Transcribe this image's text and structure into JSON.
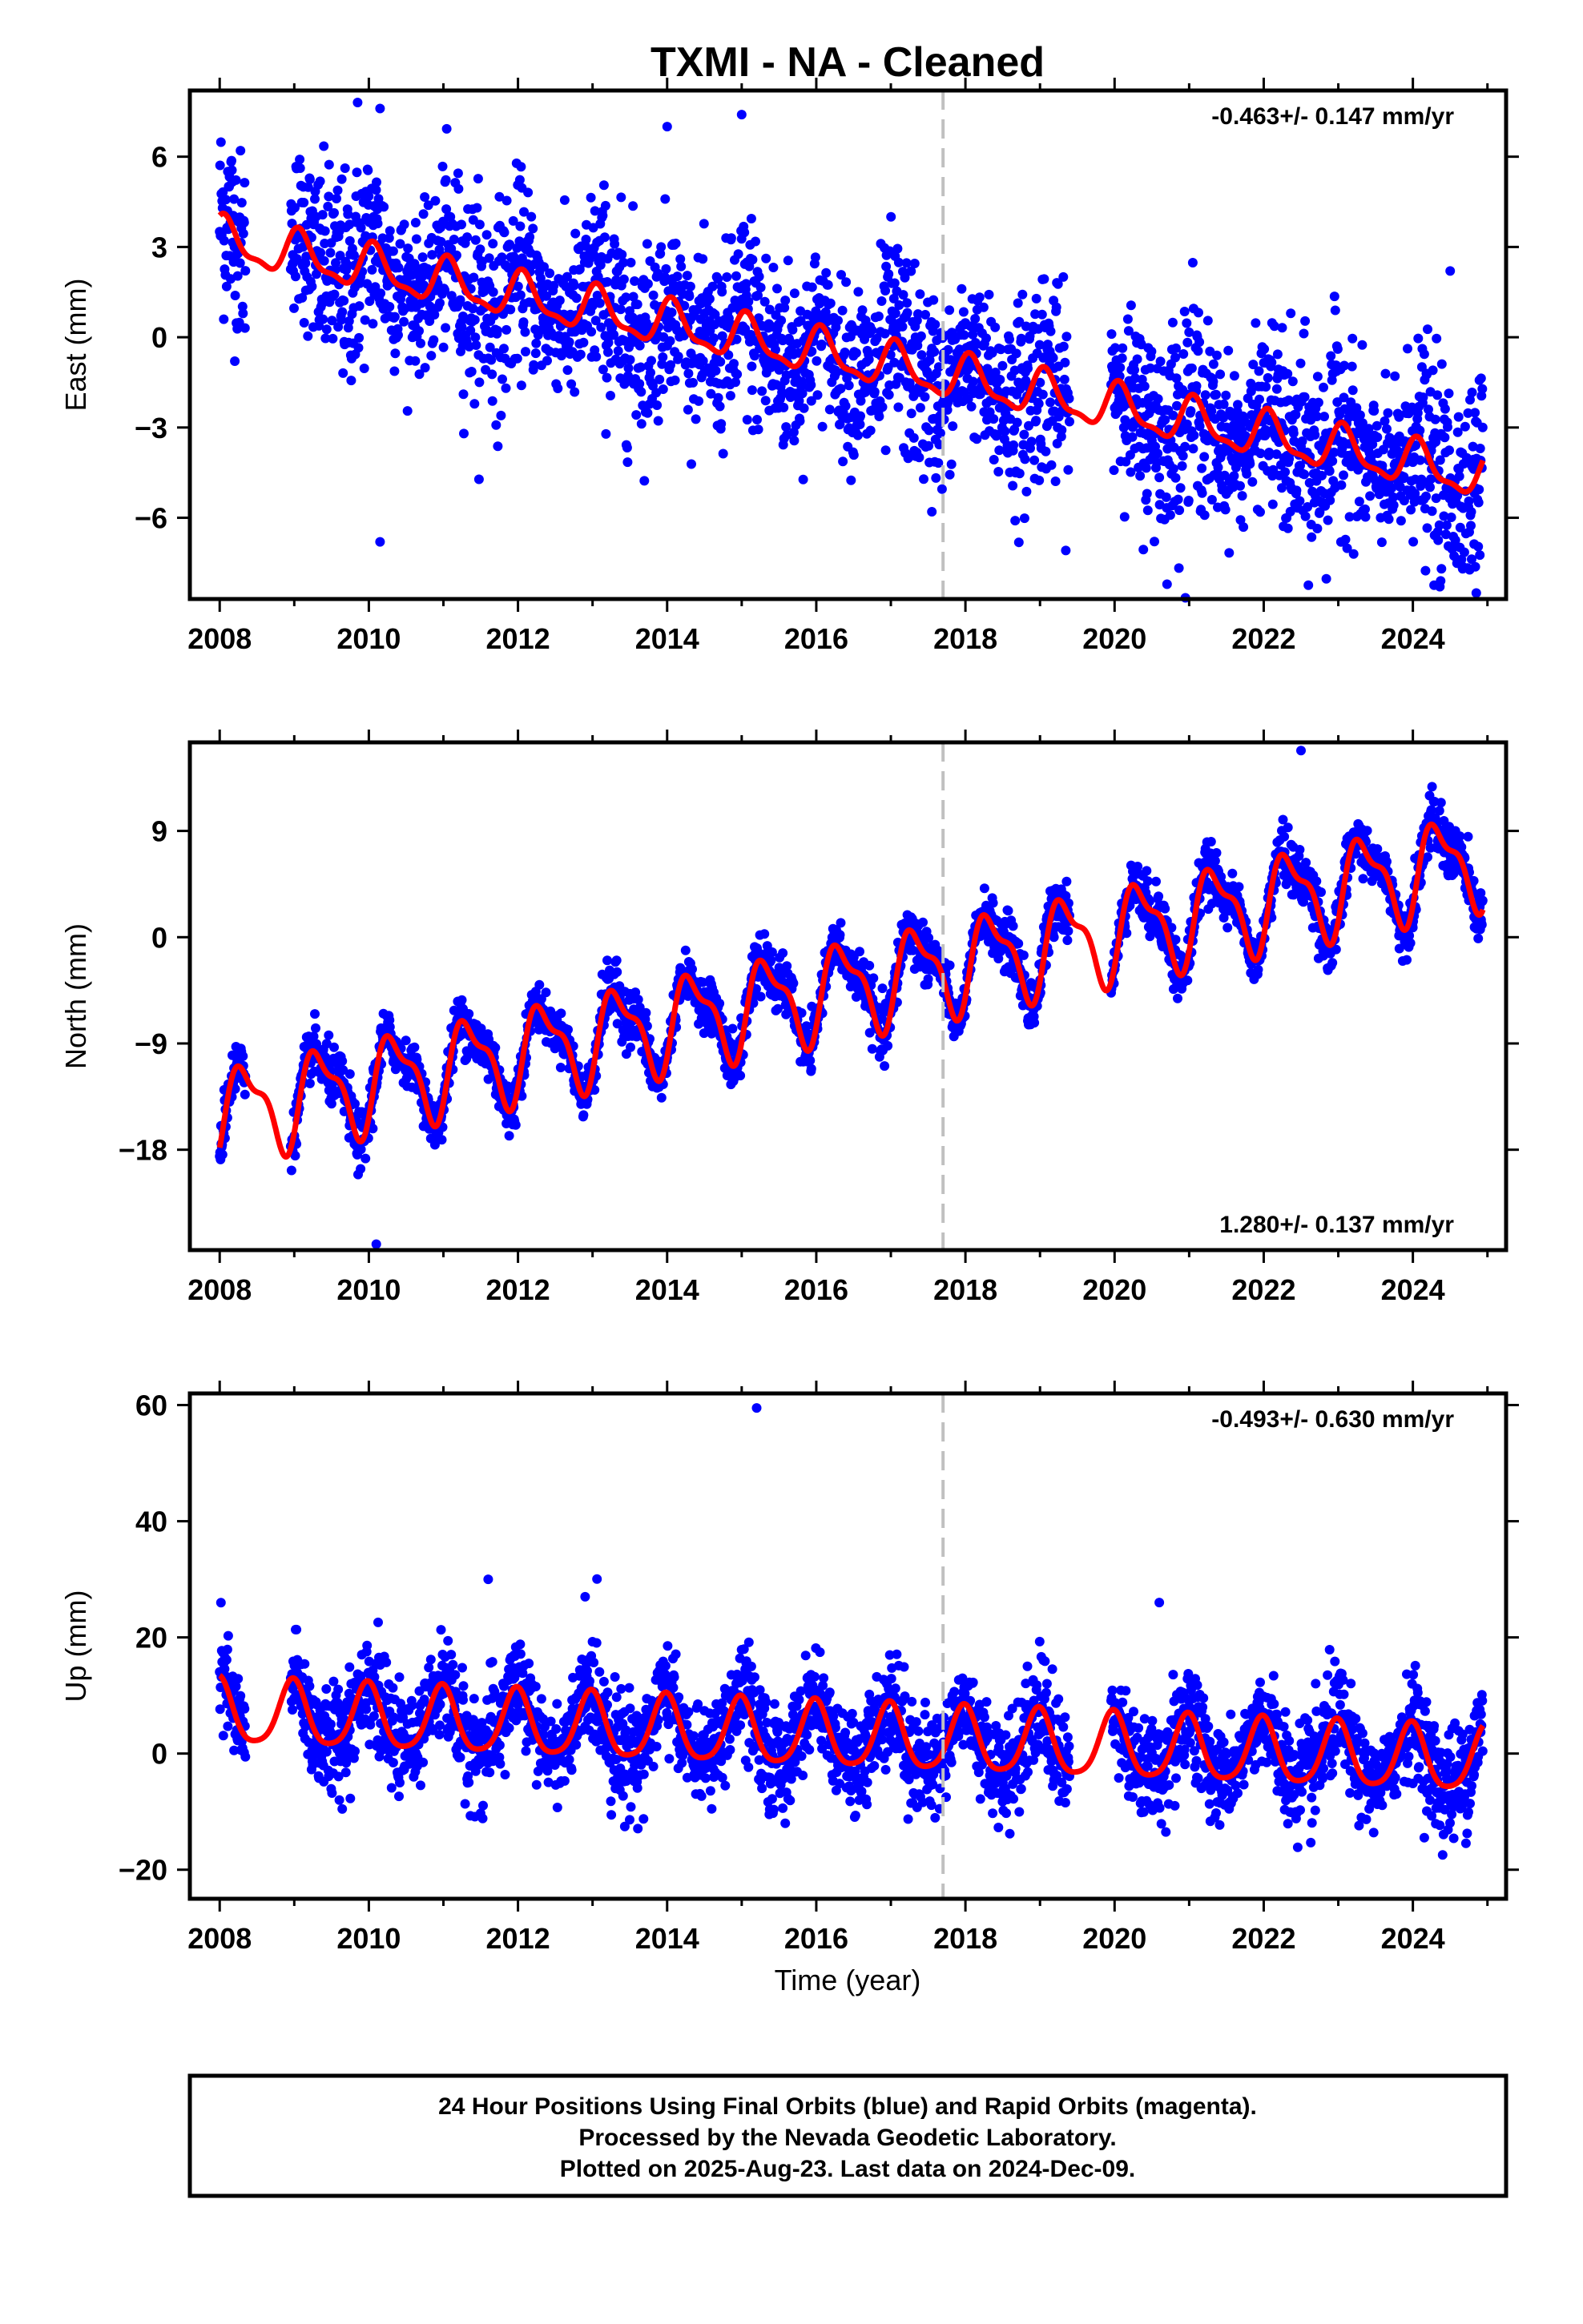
{
  "title": "TXMI  - NA - Cleaned",
  "xlabel": "Time (year)",
  "footer": [
    "24 Hour Positions Using Final Orbits (blue) and Rapid Orbits (magenta).",
    "Processed by the Nevada Geodetic Laboratory.",
    "Plotted on 2025-Aug-23. Last data on 2024-Dec-09."
  ],
  "colors": {
    "points": "#0000ff",
    "model": "#ff0000",
    "event_line": "#c0c0c0",
    "frame": "#000000"
  },
  "chart_data": [
    {
      "type": "scatter",
      "component": "east",
      "ylabel": "East (mm)",
      "rate_text": "-0.463+/- 0.147 mm/yr",
      "rate_position": "top-right",
      "xlim": [
        2007.6,
        2025.25
      ],
      "ylim": [
        -8.7,
        8.2
      ],
      "xticks": [
        2008,
        2010,
        2012,
        2014,
        2016,
        2018,
        2020,
        2022,
        2024
      ],
      "yticks": [
        -6,
        -3,
        0,
        3,
        6
      ],
      "ytick_labels": [
        "−6",
        "−3",
        "0",
        "3",
        "6"
      ],
      "event_line_year": 2017.7,
      "data_range": [
        2008.0,
        2024.94
      ],
      "model": {
        "offset_2008": 3.2,
        "rate_mm_per_yr": -0.463,
        "annual_amp": 0.7,
        "annual_phase": 1.1,
        "semiannual_amp": 0.25,
        "scatter_sd": 1.4
      },
      "outliers": [
        {
          "x": 2009.85,
          "y": 7.8
        },
        {
          "x": 2010.15,
          "y": 7.6
        },
        {
          "x": 2010.15,
          "y": -6.8
        },
        {
          "x": 2014.0,
          "y": 7.0
        },
        {
          "x": 2015.0,
          "y": 7.4
        },
        {
          "x": 2017.55,
          "y": -5.8
        },
        {
          "x": 2024.5,
          "y": 2.2
        },
        {
          "x": 2024.85,
          "y": -8.5
        }
      ]
    },
    {
      "type": "scatter",
      "component": "north",
      "ylabel": "North (mm)",
      "rate_text": "1.280+/- 0.137 mm/yr",
      "rate_position": "bottom-right",
      "xlim": [
        2007.6,
        2025.25
      ],
      "ylim": [
        -26.5,
        16.5
      ],
      "xticks": [
        2008,
        2010,
        2012,
        2014,
        2016,
        2018,
        2020,
        2022,
        2024
      ],
      "yticks": [
        -18,
        -9,
        0,
        9
      ],
      "ytick_labels": [
        "−18",
        "−9",
        "0",
        "9"
      ],
      "event_line_year": 2017.7,
      "data_range": [
        2008.0,
        2024.94
      ],
      "model": {
        "offset_2008": -15.0,
        "rate_mm_per_yr": 1.28,
        "annual_amp": 3.6,
        "annual_phase": -0.6,
        "semiannual_amp": 1.4,
        "scatter_sd": 1.0
      },
      "outliers": [
        {
          "x": 2010.1,
          "y": -26.0
        },
        {
          "x": 2022.5,
          "y": 15.8
        }
      ]
    },
    {
      "type": "scatter",
      "component": "up",
      "ylabel": "Up (mm)",
      "rate_text": "-0.493+/- 0.630 mm/yr",
      "rate_position": "top-right",
      "xlim": [
        2007.6,
        2025.25
      ],
      "ylim": [
        -25,
        62
      ],
      "xticks": [
        2008,
        2010,
        2012,
        2014,
        2016,
        2018,
        2020,
        2022,
        2024
      ],
      "yticks": [
        -20,
        0,
        20,
        40,
        60
      ],
      "ytick_labels": [
        "−20",
        "0",
        "20",
        "40",
        "60"
      ],
      "event_line_year": 2017.7,
      "data_range": [
        2008.0,
        2024.94
      ],
      "model": {
        "offset_2008": 7.0,
        "rate_mm_per_yr": -0.493,
        "annual_amp": 5.5,
        "annual_phase": 1.7,
        "semiannual_amp": 1.0,
        "scatter_sd": 4.0
      },
      "outliers": [
        {
          "x": 2015.2,
          "y": 59.5
        },
        {
          "x": 2020.6,
          "y": 26.0
        },
        {
          "x": 2011.6,
          "y": 30.0
        },
        {
          "x": 2012.9,
          "y": 27.0
        }
      ]
    }
  ]
}
